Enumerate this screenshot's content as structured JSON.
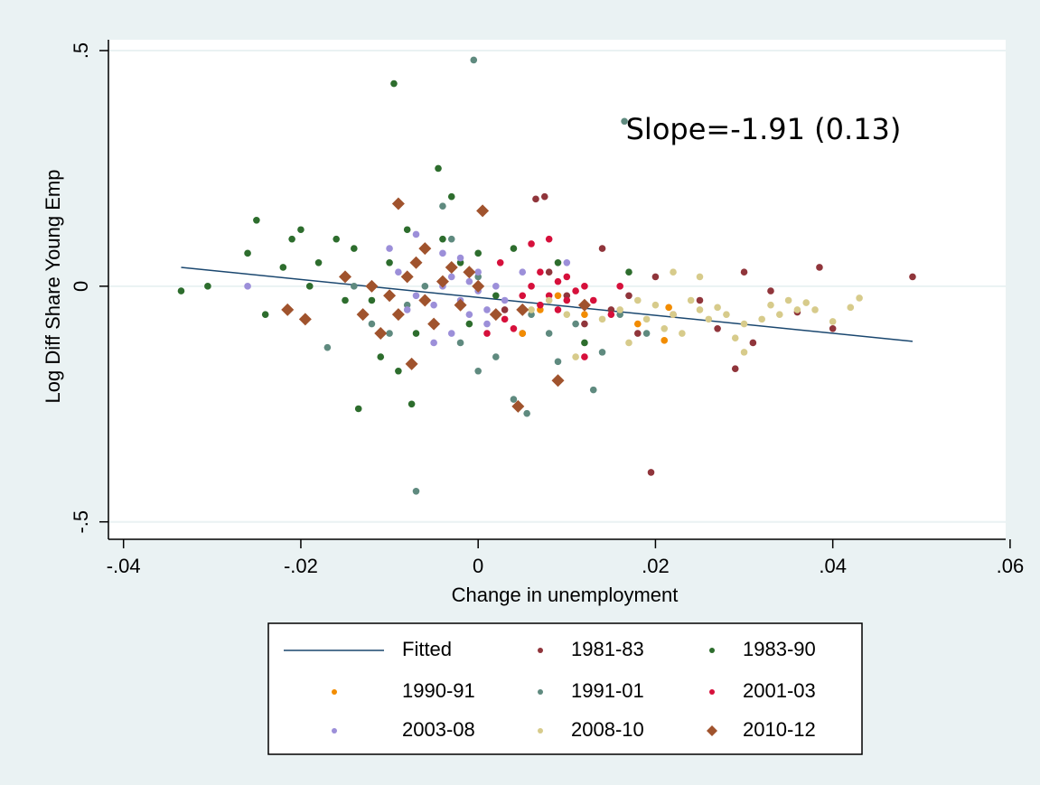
{
  "chart_data": {
    "type": "scatter",
    "annotation": "Slope=-1.91 (0.13)",
    "x_label": "Change in unemployment",
    "y_label": "Log Diff Share Young Emp",
    "xlim": [
      -0.0416,
      0.0595
    ],
    "ylim": [
      -0.537,
      0.523
    ],
    "xticks": [
      {
        "value": -0.04,
        "label": "-.04"
      },
      {
        "value": -0.02,
        "label": "-.02"
      },
      0,
      {
        "value": 0.02,
        "label": ".02"
      },
      {
        "value": 0.04,
        "label": ".04"
      },
      {
        "value": 0.06,
        "label": ".06"
      }
    ],
    "yticks": [
      {
        "value": -0.5,
        "label": "-.5"
      },
      0,
      {
        "value": 0.5,
        "label": ".5"
      }
    ],
    "grid": "y",
    "legend": "bottom",
    "series": [
      {
        "name": "Fitted",
        "color": "#1a476f",
        "marker": "line",
        "x": [
          -0.0335,
          0.049
        ],
        "values": [
          0.04,
          -0.117
        ]
      },
      {
        "name": "1981-83",
        "color": "#90353b",
        "marker": "circle",
        "x": [
          0.049,
          0.0385,
          0.0195,
          0.0075,
          0.0065,
          0.029,
          0.03,
          0.033,
          0.036,
          0.04,
          0.025,
          0.015,
          0.012,
          0.008,
          0.018,
          0.022,
          0.027,
          0.01,
          0.005,
          0.014,
          0.02,
          0.031,
          0.003,
          0.017
        ],
        "values": [
          0.02,
          0.04,
          -0.395,
          0.19,
          0.185,
          -0.175,
          0.03,
          -0.01,
          -0.055,
          -0.09,
          -0.03,
          -0.05,
          -0.08,
          0.03,
          -0.1,
          -0.06,
          -0.09,
          -0.02,
          -0.1,
          0.08,
          0.02,
          -0.12,
          -0.05,
          -0.02
        ]
      },
      {
        "name": "1983-90",
        "color": "#2d6d2d",
        "marker": "circle",
        "x": [
          -0.0335,
          -0.0305,
          -0.025,
          -0.021,
          -0.0095,
          -0.0045,
          -0.0075,
          -0.0135,
          -0.02,
          -0.018,
          -0.016,
          -0.014,
          -0.012,
          -0.01,
          -0.008,
          -0.006,
          -0.004,
          -0.002,
          0.0,
          -0.022,
          -0.024,
          -0.026,
          -0.019,
          -0.011,
          -0.009,
          -0.007,
          -0.015,
          0.002,
          0.009,
          0.012,
          0.017,
          0.004,
          -0.003,
          -0.001
        ],
        "values": [
          -0.01,
          0.0,
          0.14,
          0.1,
          0.43,
          0.25,
          -0.25,
          -0.26,
          0.12,
          0.05,
          0.1,
          0.08,
          -0.03,
          0.05,
          0.12,
          0.08,
          0.1,
          0.05,
          0.07,
          0.04,
          -0.06,
          0.07,
          0.0,
          -0.15,
          -0.18,
          -0.1,
          -0.03,
          -0.02,
          0.05,
          -0.12,
          0.03,
          0.08,
          0.19,
          -0.08
        ]
      },
      {
        "name": "1990-91",
        "color": "#f28c00",
        "marker": "circle",
        "x": [
          0.005,
          0.009,
          0.012,
          0.0215,
          0.021,
          0.018,
          0.007
        ],
        "values": [
          -0.1,
          -0.02,
          -0.06,
          -0.045,
          -0.115,
          -0.08,
          -0.05
        ]
      },
      {
        "name": "1991-01",
        "color": "#5f8a7f",
        "marker": "circle",
        "x": [
          -0.0005,
          -0.007,
          -0.017,
          -0.012,
          -0.008,
          -0.004,
          -0.003,
          0.0,
          0.002,
          0.004,
          0.0055,
          0.008,
          0.011,
          0.014,
          0.0165,
          0.016,
          0.019,
          0.013,
          -0.006,
          0.0,
          -0.002,
          0.006,
          0.009,
          -0.01,
          -0.014
        ],
        "values": [
          0.48,
          -0.435,
          -0.13,
          -0.08,
          -0.04,
          0.17,
          0.1,
          -0.18,
          -0.15,
          -0.24,
          -0.27,
          -0.1,
          -0.08,
          -0.14,
          0.35,
          -0.06,
          -0.1,
          -0.22,
          0.0,
          0.02,
          -0.12,
          -0.06,
          -0.16,
          -0.1,
          0.0
        ]
      },
      {
        "name": "2001-03",
        "color": "#d6103b",
        "marker": "circle",
        "x": [
          0.006,
          0.008,
          0.009,
          0.01,
          0.011,
          0.012,
          0.009,
          0.007,
          0.013,
          0.005,
          0.015,
          0.003,
          0.001,
          0.0025,
          0.016,
          0.008,
          0.006,
          0.012,
          0.004,
          0.01,
          0.007
        ],
        "values": [
          0.0,
          -0.02,
          0.01,
          -0.03,
          -0.01,
          0.0,
          -0.05,
          -0.04,
          -0.03,
          -0.02,
          -0.06,
          -0.07,
          -0.1,
          0.05,
          0.0,
          0.1,
          0.09,
          -0.15,
          -0.09,
          0.02,
          0.03
        ]
      },
      {
        "name": "2003-08",
        "color": "#9c8fd9",
        "marker": "circle",
        "x": [
          -0.026,
          -0.009,
          -0.007,
          -0.005,
          -0.004,
          -0.003,
          -0.002,
          -0.001,
          0.0,
          0.001,
          -0.006,
          -0.004,
          -0.002,
          0.002,
          0.003,
          -0.008,
          -0.003,
          -0.005,
          0.0,
          -0.001,
          0.005,
          0.01,
          -0.007,
          -0.01,
          0.001
        ],
        "values": [
          0.0,
          0.03,
          -0.02,
          -0.04,
          0.0,
          0.02,
          -0.03,
          0.01,
          -0.01,
          -0.05,
          0.08,
          0.07,
          0.06,
          0.0,
          -0.03,
          -0.05,
          -0.1,
          -0.12,
          0.03,
          -0.06,
          0.03,
          0.05,
          0.11,
          0.08,
          -0.08
        ]
      },
      {
        "name": "2008-10",
        "color": "#d7cb8b",
        "marker": "circle",
        "x": [
          0.043,
          0.042,
          0.04,
          0.035,
          0.034,
          0.033,
          0.036,
          0.032,
          0.03,
          0.028,
          0.027,
          0.026,
          0.025,
          0.024,
          0.022,
          0.021,
          0.02,
          0.019,
          0.018,
          0.016,
          0.014,
          0.012,
          0.01,
          0.008,
          0.006,
          0.03,
          0.022,
          0.025,
          0.029,
          0.038,
          0.037,
          0.023,
          0.017,
          0.011
        ],
        "values": [
          -0.025,
          -0.045,
          -0.075,
          -0.03,
          -0.06,
          -0.04,
          -0.05,
          -0.07,
          -0.08,
          -0.06,
          -0.045,
          -0.07,
          -0.05,
          -0.03,
          -0.06,
          -0.09,
          -0.04,
          -0.07,
          -0.03,
          -0.05,
          -0.07,
          -0.04,
          -0.06,
          -0.03,
          -0.05,
          -0.14,
          0.03,
          0.02,
          -0.11,
          -0.05,
          -0.035,
          -0.1,
          -0.12,
          -0.15
        ]
      },
      {
        "name": "2010-12",
        "color": "#a0532d",
        "marker": "diamond",
        "x": [
          -0.0215,
          -0.0195,
          -0.009,
          0.0005,
          -0.0075,
          0.009,
          0.0045,
          -0.012,
          -0.01,
          -0.008,
          -0.006,
          -0.004,
          -0.002,
          0.0,
          0.002,
          -0.009,
          -0.007,
          -0.005,
          -0.003,
          -0.011,
          -0.013,
          -0.006,
          0.005,
          0.012,
          -0.015,
          -0.001
        ],
        "values": [
          -0.05,
          -0.07,
          0.175,
          0.16,
          -0.165,
          -0.2,
          -0.255,
          0.0,
          -0.02,
          0.02,
          -0.03,
          0.01,
          -0.04,
          0.0,
          -0.06,
          -0.06,
          0.05,
          -0.08,
          0.04,
          -0.1,
          -0.06,
          0.08,
          -0.05,
          -0.04,
          0.02,
          0.03
        ]
      }
    ]
  }
}
